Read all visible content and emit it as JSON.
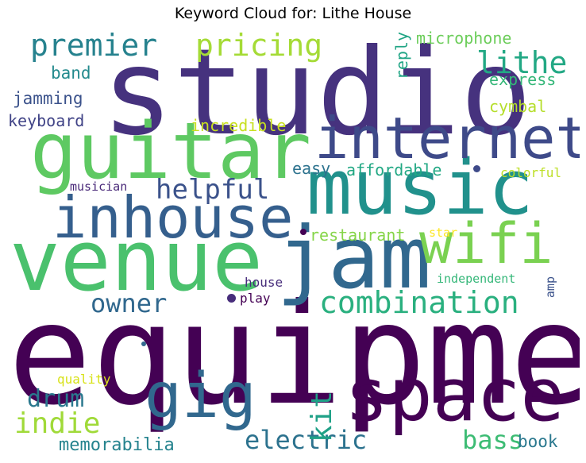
{
  "title": "Keyword Cloud for: Lithe House",
  "words": [
    {
      "text": "studio",
      "color": "#46327e"
    },
    {
      "text": "equipment",
      "color": "#440154"
    },
    {
      "text": "guitar",
      "color": "#5ec962"
    },
    {
      "text": "music",
      "color": "#21918c"
    },
    {
      "text": "venue",
      "color": "#4ac16d"
    },
    {
      "text": "jam",
      "color": "#31688e"
    },
    {
      "text": "space",
      "color": "#440154"
    },
    {
      "text": "internet",
      "color": "#3e4a89"
    },
    {
      "text": "inhouse",
      "color": "#355f8d"
    },
    {
      "text": "wifi",
      "color": "#7ad151"
    },
    {
      "text": "gig",
      "color": "#31688e"
    },
    {
      "text": "premier",
      "color": "#26828e"
    },
    {
      "text": "pricing",
      "color": "#a5db36"
    },
    {
      "text": "lithe",
      "color": "#22a884"
    },
    {
      "text": "combination",
      "color": "#2ab07f"
    },
    {
      "text": "helpful",
      "color": "#3b528b"
    },
    {
      "text": "owner",
      "color": "#31688e"
    },
    {
      "text": "electric",
      "color": "#2c728e"
    },
    {
      "text": "indie",
      "color": "#a0da39"
    },
    {
      "text": "drum",
      "color": "#2a788e"
    },
    {
      "text": "bass",
      "color": "#3dbc74"
    },
    {
      "text": "kit",
      "color": "#1fa187"
    },
    {
      "text": "microphone",
      "color": "#6ccd5a"
    },
    {
      "text": "express",
      "color": "#35b779"
    },
    {
      "text": "cymbal",
      "color": "#b5de2b"
    },
    {
      "text": "reply",
      "color": "#21a585"
    },
    {
      "text": "band",
      "color": "#238a8d"
    },
    {
      "text": "jamming",
      "color": "#3b528b"
    },
    {
      "text": "keyboard",
      "color": "#414487"
    },
    {
      "text": "incredible",
      "color": "#c8e020"
    },
    {
      "text": "easy",
      "color": "#2c728e"
    },
    {
      "text": "affordable",
      "color": "#22a884"
    },
    {
      "text": "restaurant",
      "color": "#86d549"
    },
    {
      "text": "memorabilia",
      "color": "#25838e"
    },
    {
      "text": "book",
      "color": "#2a788e"
    },
    {
      "text": "colorful",
      "color": "#bddf26"
    },
    {
      "text": "musician",
      "color": "#482878"
    },
    {
      "text": "house",
      "color": "#472d7b"
    },
    {
      "text": "play",
      "color": "#440154"
    },
    {
      "text": "amp",
      "color": "#3b528b"
    },
    {
      "text": "independent",
      "color": "#35b779"
    },
    {
      "text": "star",
      "color": "#fde725"
    },
    {
      "text": "quality",
      "color": "#d8e219"
    }
  ],
  "dots": [
    {
      "color": "#3e4a89"
    },
    {
      "color": "#472d7b"
    },
    {
      "color": "#440154"
    },
    {
      "color": "#31688e"
    }
  ]
}
